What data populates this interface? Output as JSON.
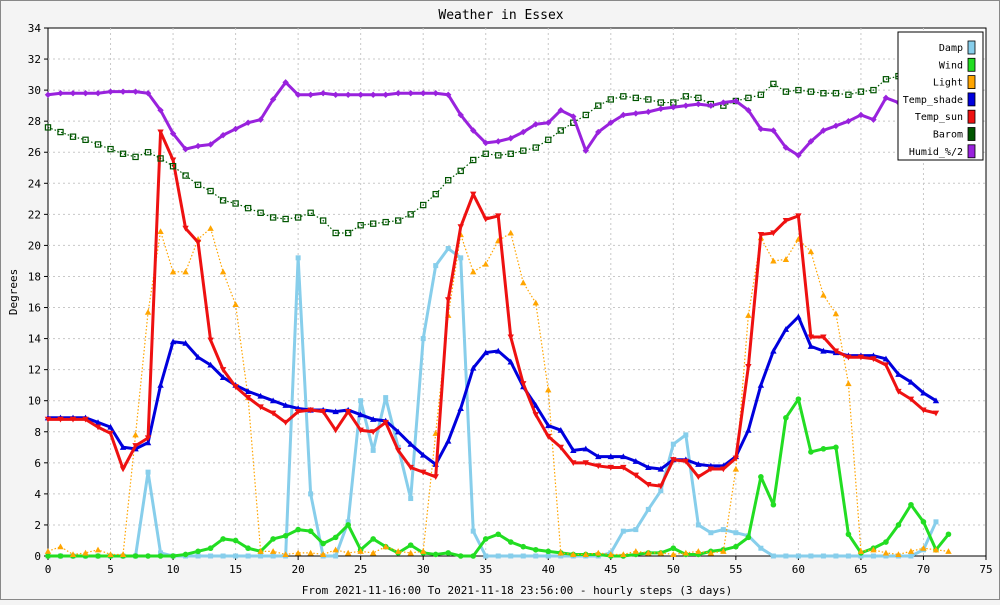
{
  "chart_data": {
    "type": "line",
    "title": "Weather in Essex",
    "xlabel": "From 2021-11-16:00 To 2021-11-18 23:56:00 - hourly steps (3 days)",
    "ylabel": "Degrees",
    "xlim": [
      0,
      75
    ],
    "ylim": [
      0,
      34
    ],
    "x_ticks": [
      0,
      5,
      10,
      15,
      20,
      25,
      30,
      35,
      40,
      45,
      50,
      55,
      60,
      65,
      70,
      75
    ],
    "y_ticks": [
      0,
      2,
      4,
      6,
      8,
      10,
      12,
      14,
      16,
      18,
      20,
      22,
      24,
      26,
      28,
      30,
      32,
      34
    ],
    "grid": true,
    "legend_position": "top-right",
    "series": [
      {
        "name": "Damp",
        "color": "#87ceeb",
        "marker": "square",
        "dotted": false,
        "values": [
          0,
          0,
          0,
          0,
          0,
          0,
          0,
          0,
          5.4,
          0.2,
          0,
          0,
          0,
          0,
          0,
          0,
          0,
          0,
          0,
          0,
          19.2,
          4,
          0,
          0,
          2.2,
          10,
          6.8,
          10.2,
          7,
          3.7,
          14,
          18.7,
          19.8,
          19.2,
          1.6,
          0,
          0,
          0,
          0,
          0,
          0,
          0,
          0,
          0,
          0,
          0.2,
          1.6,
          1.7,
          3,
          4.2,
          7.2,
          7.8,
          2,
          1.5,
          1.7,
          1.5,
          1.3,
          0.5,
          0,
          0,
          0,
          0,
          0,
          0,
          0,
          0,
          0,
          0,
          0,
          0,
          0.4,
          2.2
        ]
      },
      {
        "name": "Wind",
        "color": "#22dd22",
        "marker": "circle",
        "dotted": false,
        "values": [
          0,
          0,
          0,
          0,
          0,
          0,
          0,
          0,
          0,
          0,
          0,
          0.1,
          0.3,
          0.5,
          1.1,
          1,
          0.5,
          0.3,
          1.1,
          1.3,
          1.7,
          1.6,
          0.8,
          1.2,
          2,
          0.4,
          1.1,
          0.6,
          0.2,
          0.7,
          0.2,
          0.1,
          0.2,
          0,
          0,
          1.1,
          1.4,
          0.9,
          0.6,
          0.4,
          0.3,
          0.2,
          0.1,
          0.1,
          0.1,
          0,
          0,
          0.1,
          0.2,
          0.2,
          0.5,
          0.1,
          0.1,
          0.3,
          0.4,
          0.6,
          1.2,
          5.1,
          3.3,
          8.9,
          10.1,
          6.7,
          6.9,
          7,
          1.4,
          0.2,
          0.5,
          0.9,
          2,
          3.3,
          2.2,
          0.4,
          1.4
        ]
      },
      {
        "name": "Light",
        "color": "#ffa500",
        "marker": "triangle-up",
        "dotted": true,
        "values": [
          0.3,
          0.6,
          0.1,
          0.2,
          0.4,
          0.1,
          0.1,
          7.8,
          15.7,
          20.9,
          18.3,
          18.3,
          20.4,
          21.1,
          18.3,
          16.2,
          10.2,
          0.3,
          0.3,
          0.1,
          0.2,
          0.2,
          0.1,
          0.4,
          0.2,
          0.3,
          0.2,
          0.6,
          0.3,
          0.2,
          0.3,
          7.9,
          15.5,
          20.7,
          18.3,
          18.8,
          20.3,
          20.8,
          17.6,
          16.3,
          10.7,
          0.2,
          0.1,
          0.1,
          0.2,
          0.1,
          0.1,
          0.3,
          0.2,
          0.2,
          0.1,
          0.2,
          0.3,
          0.2,
          0.3,
          5.6,
          15.5,
          20.5,
          19,
          19.1,
          20.4,
          19.6,
          16.8,
          15.6,
          11.1,
          0.3,
          0.4,
          0.2,
          0.1,
          0.3,
          0.5,
          0.4,
          0.3
        ]
      },
      {
        "name": "Temp_shade",
        "color": "#0000dd",
        "marker": "triangle-up",
        "dotted": false,
        "values": [
          8.9,
          8.9,
          8.9,
          8.9,
          8.6,
          8.3,
          7,
          6.9,
          7.3,
          11,
          13.8,
          13.7,
          12.8,
          12.3,
          11.5,
          11,
          10.6,
          10.3,
          10,
          9.7,
          9.5,
          9.4,
          9.4,
          9.3,
          9.4,
          9.1,
          8.8,
          8.7,
          8,
          7.2,
          6.5,
          5.9,
          7.4,
          9.5,
          12.1,
          13.1,
          13.2,
          12.5,
          10.9,
          9.7,
          8.4,
          8.1,
          6.8,
          6.9,
          6.4,
          6.4,
          6.4,
          6.1,
          5.7,
          5.6,
          6.2,
          6.2,
          5.9,
          5.8,
          5.8,
          6.4,
          8.1,
          11,
          13.2,
          14.6,
          15.4,
          13.5,
          13.2,
          13.1,
          12.9,
          12.9,
          12.9,
          12.7,
          11.7,
          11.2,
          10.5,
          10
        ]
      },
      {
        "name": "Temp_sun",
        "color": "#ee1111",
        "marker": "triangle-down",
        "dotted": false,
        "values": [
          8.8,
          8.8,
          8.8,
          8.8,
          8.3,
          7.9,
          5.6,
          7.1,
          7.6,
          27.3,
          25.5,
          21.1,
          20.2,
          13.9,
          12,
          10.9,
          10.2,
          9.6,
          9.2,
          8.6,
          9.3,
          9.4,
          9.3,
          8.1,
          9.3,
          8.1,
          8,
          8.6,
          6.8,
          5.7,
          5.4,
          5.1,
          16.5,
          21.2,
          23.3,
          21.7,
          21.9,
          14.1,
          11.1,
          9.1,
          7.7,
          7,
          6,
          6,
          5.8,
          5.7,
          5.7,
          5.2,
          4.6,
          4.5,
          6.2,
          6.1,
          5.1,
          5.6,
          5.6,
          6.3,
          12.2,
          20.7,
          20.8,
          21.6,
          21.9,
          14.1,
          14.1,
          13.2,
          12.8,
          12.8,
          12.7,
          12.3,
          10.6,
          10.1,
          9.4,
          9.2
        ]
      },
      {
        "name": "Barom",
        "color": "#005500",
        "marker": "square-open",
        "dotted": true,
        "values": [
          27.6,
          27.3,
          27,
          26.8,
          26.5,
          26.2,
          25.9,
          25.7,
          26,
          25.6,
          25.1,
          24.5,
          23.9,
          23.5,
          22.9,
          22.7,
          22.4,
          22.1,
          21.8,
          21.7,
          21.8,
          22.1,
          21.6,
          20.8,
          20.8,
          21.3,
          21.4,
          21.5,
          21.6,
          22,
          22.6,
          23.3,
          24.2,
          24.8,
          25.5,
          25.9,
          25.8,
          25.9,
          26.1,
          26.3,
          26.8,
          27.4,
          27.9,
          28.4,
          29,
          29.4,
          29.6,
          29.5,
          29.4,
          29.2,
          29.2,
          29.6,
          29.5,
          29.1,
          29,
          29.3,
          29.5,
          29.7,
          30.4,
          29.9,
          30,
          29.9,
          29.8,
          29.8,
          29.7,
          29.9,
          30,
          30.7,
          30.9,
          30.8
        ]
      },
      {
        "name": "Humid_%/2",
        "color": "#9922dd",
        "marker": "diamond",
        "dotted": false,
        "values": [
          29.7,
          29.8,
          29.8,
          29.8,
          29.8,
          29.9,
          29.9,
          29.9,
          29.8,
          28.7,
          27.2,
          26.2,
          26.4,
          26.5,
          27.1,
          27.5,
          27.9,
          28.1,
          29.4,
          30.5,
          29.7,
          29.7,
          29.8,
          29.7,
          29.7,
          29.7,
          29.7,
          29.7,
          29.8,
          29.8,
          29.8,
          29.8,
          29.7,
          28.4,
          27.4,
          26.6,
          26.7,
          26.9,
          27.3,
          27.8,
          27.9,
          28.7,
          28.3,
          26.1,
          27.3,
          27.9,
          28.4,
          28.5,
          28.6,
          28.8,
          28.9,
          29,
          29.1,
          29,
          29.2,
          29.3,
          28.7,
          27.5,
          27.4,
          26.3,
          25.8,
          26.7,
          27.4,
          27.7,
          28,
          28.4,
          28.1,
          29.5,
          29.2,
          28.6,
          28
        ]
      }
    ]
  }
}
